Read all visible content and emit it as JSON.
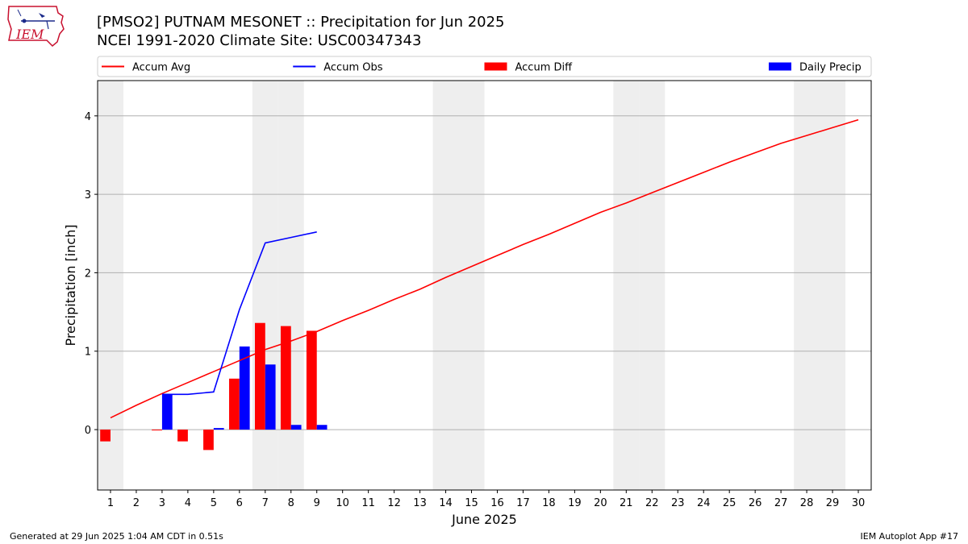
{
  "logo": {
    "text": "IEM"
  },
  "header": {
    "title": "[PMSO2] PUTNAM MESONET :: Precipitation for Jun 2025",
    "subtitle": "NCEI 1991-2020 Climate Site: USC00347343"
  },
  "footer": {
    "left": "Generated at 29 Jun 2025 1:04 AM CDT in 0.51s",
    "right": "IEM Autoplot App #17"
  },
  "chart_data": {
    "type": "bar",
    "xlabel": "June 2025",
    "ylabel": "Precipitation [inch]",
    "ylim": [
      -0.77,
      4.45
    ],
    "yticks": [
      0,
      1,
      2,
      3,
      4
    ],
    "x": [
      1,
      2,
      3,
      4,
      5,
      6,
      7,
      8,
      9,
      10,
      11,
      12,
      13,
      14,
      15,
      16,
      17,
      18,
      19,
      20,
      21,
      22,
      23,
      24,
      25,
      26,
      27,
      28,
      29,
      30
    ],
    "grid": "horizontal",
    "legend_placement": "top",
    "weekend_days": [
      1,
      7,
      8,
      14,
      15,
      21,
      22,
      28,
      29
    ],
    "series": [
      {
        "name": "Accum Avg",
        "kind": "line",
        "color": "#ff0000",
        "x": [
          1,
          2,
          3,
          4,
          5,
          6,
          7,
          8,
          9,
          10,
          11,
          12,
          13,
          14,
          15,
          16,
          17,
          18,
          19,
          20,
          21,
          22,
          23,
          24,
          25,
          26,
          27,
          28,
          29,
          30
        ],
        "values": [
          0.15,
          0.31,
          0.46,
          0.6,
          0.74,
          0.88,
          1.02,
          1.13,
          1.25,
          1.39,
          1.52,
          1.66,
          1.79,
          1.94,
          2.08,
          2.22,
          2.36,
          2.49,
          2.63,
          2.77,
          2.89,
          3.02,
          3.15,
          3.28,
          3.41,
          3.53,
          3.65,
          3.75,
          3.85,
          3.95
        ]
      },
      {
        "name": "Accum Obs",
        "kind": "line",
        "color": "#0000ff",
        "x": [
          3,
          4,
          5,
          6,
          7,
          8,
          9
        ],
        "values": [
          0.45,
          0.45,
          0.48,
          1.53,
          2.38,
          2.45,
          2.52
        ]
      },
      {
        "name": "Accum Diff",
        "kind": "bar",
        "color": "#ff0000",
        "x": [
          1,
          3,
          4,
          5,
          6,
          7,
          8,
          9
        ],
        "values": [
          -0.15,
          -0.01,
          -0.15,
          -0.26,
          0.65,
          1.36,
          1.32,
          1.26
        ]
      },
      {
        "name": "Daily Precip",
        "kind": "bar",
        "color": "#0000ff",
        "x": [
          3,
          5,
          6,
          7,
          8,
          9
        ],
        "values": [
          0.45,
          0.02,
          1.06,
          0.83,
          0.06,
          0.06
        ]
      }
    ]
  }
}
